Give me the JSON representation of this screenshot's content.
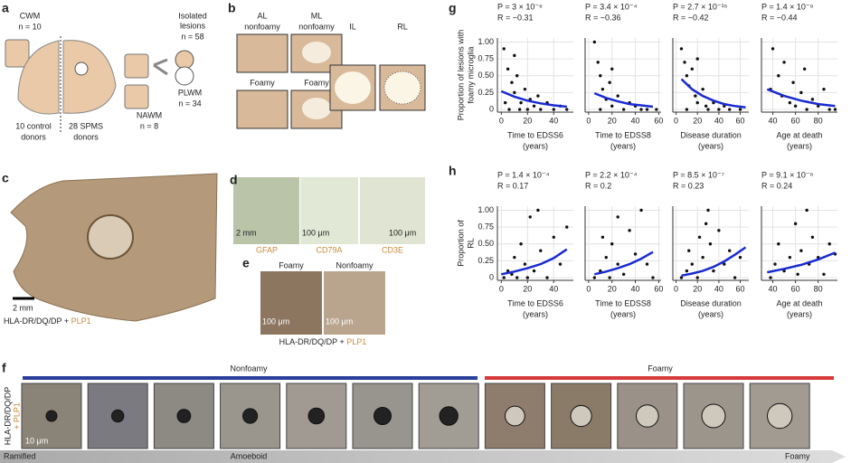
{
  "panel_labels": [
    "a",
    "b",
    "c",
    "d",
    "e",
    "f",
    "g",
    "h"
  ],
  "a": {
    "cwm": "CWM",
    "cwm_n": "n = 10",
    "isolated": [
      "Isolated",
      "lesions"
    ],
    "isolated_n": "n = 58",
    "plwm": "PLWM",
    "plwm_n": "n = 34",
    "nawm": "NAWM",
    "nawm_n": "n = 8",
    "control": [
      "10 control",
      "donors"
    ],
    "spms": [
      "28 SPMS",
      "donors"
    ]
  },
  "b": {
    "al": [
      "AL",
      "nonfoamy"
    ],
    "ml": [
      "ML",
      "nonfoamy"
    ],
    "il": "IL",
    "rl": "RL",
    "foamy_al": "Foamy",
    "foamy_ml": "Foamy"
  },
  "c": {
    "scale": "2 mm",
    "stain": "HLA-DR/DQ/DP + ",
    "plp1": "PLP1"
  },
  "d": {
    "gfap": "GFAP",
    "cd79a": "CD79A",
    "cd3e": "CD3E",
    "scale1": "2 mm",
    "scale2": "100 μm",
    "scale3": "100 μm"
  },
  "e": {
    "foamy": "Foamy",
    "nonfoamy": "Nonfoamy",
    "scale1": "100 μm",
    "scale2": "100 μm",
    "stain": "HLA-DR/DQ/DP + ",
    "plp1": "PLP1"
  },
  "f": {
    "nonfoamy": "Nonfoamy",
    "foamy": "Foamy",
    "ramified": "Ramified",
    "amoeboid": "Amoeboid",
    "foamy_end": "Foamy",
    "scale": "10 μm",
    "stain": "HLA-DR/DQ/DP",
    "plp1": "+ PLP1"
  },
  "chart_data": [
    {
      "type": "scatter",
      "ylabel": [
        "Proportion of lesions with",
        "foamy microglia"
      ],
      "stats": [
        "P = 3 × 10⁻⁶",
        "R = −0.31"
      ],
      "xlabel": [
        "Time to EDSS6",
        "(years)"
      ],
      "x": [
        2,
        5,
        8,
        10,
        12,
        15,
        18,
        20,
        22,
        25,
        28,
        30,
        35,
        40,
        45,
        3,
        6,
        10,
        14,
        50
      ],
      "y": [
        0.9,
        0.6,
        0.4,
        0.25,
        0.5,
        0.1,
        0.3,
        0,
        0.15,
        0.05,
        0.2,
        0,
        0.1,
        0,
        0.05,
        0.1,
        0,
        0.8,
        0,
        0
      ],
      "fit_x": [
        0,
        10,
        20,
        30,
        40,
        50
      ],
      "fit_y": [
        0.27,
        0.19,
        0.13,
        0.09,
        0.06,
        0.04
      ],
      "color": "#111111",
      "fit_color": "#1a2bd0",
      "grid": true,
      "xlim": [
        -3,
        55
      ],
      "xticks": [
        0,
        20,
        40
      ],
      "ylim": [
        -0.04,
        1.06
      ],
      "yticks": [
        0,
        0.25,
        {
          "value": 0.5,
          "label": "0.50"
        },
        0.75,
        {
          "value": 1,
          "label": "1.00"
        }
      ]
    },
    {
      "type": "scatter",
      "stats": [
        "P = 3.4 × 10⁻⁴",
        "R = −0.36"
      ],
      "xlabel": [
        "Time to EDSS8",
        "(years)"
      ],
      "x": [
        5,
        8,
        10,
        12,
        15,
        18,
        20,
        25,
        30,
        35,
        40,
        45,
        50,
        58,
        10,
        20
      ],
      "y": [
        1,
        0.7,
        0.5,
        0.3,
        0.15,
        0.4,
        0.05,
        0.2,
        0,
        0.1,
        0.05,
        0,
        0,
        0,
        0,
        0.6
      ],
      "fit_x": [
        5,
        15,
        25,
        35,
        45,
        55
      ],
      "fit_y": [
        0.24,
        0.17,
        0.12,
        0.08,
        0.06,
        0.04
      ],
      "color": "#111111",
      "fit_color": "#1a2bd0",
      "grid": true,
      "xlim": [
        -3,
        62
      ],
      "xticks": [
        0,
        20,
        40,
        60
      ],
      "ylim": [
        -0.04,
        1.06
      ],
      "yticks": [
        0,
        0.25,
        0.5,
        0.75,
        1
      ]
    },
    {
      "type": "scatter",
      "stats": [
        "P = 2.7 × 10⁻¹⁵",
        "R = −0.42"
      ],
      "xlabel": [
        "Disease duration",
        "(years)"
      ],
      "x": [
        5,
        8,
        10,
        12,
        15,
        18,
        20,
        25,
        28,
        30,
        35,
        40,
        45,
        50,
        60,
        10,
        20
      ],
      "y": [
        0.9,
        0.7,
        0.5,
        0.35,
        0.6,
        0.2,
        0.1,
        0.3,
        0.05,
        0,
        0.1,
        0,
        0.05,
        0,
        0,
        0,
        0.75
      ],
      "fit_x": [
        5,
        15,
        25,
        35,
        45,
        55,
        65
      ],
      "fit_y": [
        0.45,
        0.3,
        0.2,
        0.13,
        0.08,
        0.05,
        0.03
      ],
      "color": "#111111",
      "fit_color": "#1a2bd0",
      "grid": true,
      "xlim": [
        -3,
        68
      ],
      "xticks": [
        0,
        20,
        40,
        60
      ],
      "ylim": [
        -0.04,
        1.06
      ],
      "yticks": [
        0,
        0.25,
        0.5,
        0.75,
        1
      ]
    },
    {
      "type": "scatter",
      "stats": [
        "P = 1.4 × 10⁻⁸",
        "R = −0.44"
      ],
      "xlabel": [
        "Age at death",
        "(years)"
      ],
      "x": [
        38,
        40,
        45,
        48,
        50,
        55,
        58,
        60,
        65,
        68,
        70,
        75,
        80,
        85,
        90,
        95
      ],
      "y": [
        0.3,
        0.9,
        0.5,
        0.2,
        0.7,
        0.1,
        0.4,
        0.05,
        0.25,
        0.6,
        0,
        0.15,
        0.05,
        0.3,
        0,
        0
      ],
      "fit_x": [
        35,
        50,
        65,
        80,
        95
      ],
      "fit_y": [
        0.3,
        0.2,
        0.13,
        0.08,
        0.05
      ],
      "color": "#111111",
      "fit_color": "#1a2bd0",
      "grid": true,
      "xlim": [
        30,
        97
      ],
      "xticks": [
        40,
        60,
        80
      ],
      "ylim": [
        -0.04,
        1.06
      ],
      "yticks": [
        0,
        0.25,
        0.5,
        0.75,
        1
      ]
    },
    {
      "type": "scatter",
      "ylabel": [
        "Proportion of",
        "RL"
      ],
      "stats": [
        "P = 1.4 × 10⁻⁴",
        "R = 0.17"
      ],
      "xlabel": [
        "Time to EDSS6",
        "(years)"
      ],
      "x": [
        2,
        5,
        8,
        10,
        12,
        15,
        18,
        20,
        22,
        25,
        30,
        35,
        40,
        45,
        50,
        28
      ],
      "y": [
        0,
        0.1,
        0.05,
        0.3,
        0,
        0.5,
        0.2,
        0,
        0.9,
        0.1,
        0.4,
        0,
        0.6,
        0.2,
        0.75,
        1
      ],
      "fit_x": [
        0,
        10,
        20,
        30,
        40,
        50
      ],
      "fit_y": [
        0.05,
        0.09,
        0.14,
        0.2,
        0.29,
        0.42
      ],
      "color": "#111111",
      "fit_color": "#1a2bd0",
      "grid": true,
      "xlim": [
        -3,
        55
      ],
      "xticks": [
        0,
        20,
        40
      ],
      "ylim": [
        -0.04,
        1.06
      ],
      "yticks": [
        0,
        0.25,
        {
          "value": 0.5,
          "label": "0.50"
        },
        0.75,
        {
          "value": 1,
          "label": "1.00"
        }
      ]
    },
    {
      "type": "scatter",
      "stats": [
        "P = 2.2 × 10⁻⁴",
        "R = 0.2"
      ],
      "xlabel": [
        "Time to EDSS8",
        "(years)"
      ],
      "x": [
        5,
        10,
        15,
        18,
        20,
        25,
        30,
        35,
        40,
        45,
        50,
        55,
        25,
        12
      ],
      "y": [
        0,
        0.1,
        0.3,
        0,
        0.5,
        0.2,
        0.05,
        0.7,
        0.35,
        1,
        0.2,
        0,
        0.9,
        0.6
      ],
      "fit_x": [
        5,
        15,
        25,
        35,
        45,
        55
      ],
      "fit_y": [
        0.05,
        0.09,
        0.14,
        0.2,
        0.28,
        0.38
      ],
      "color": "#111111",
      "fit_color": "#1a2bd0",
      "grid": true,
      "xlim": [
        -3,
        62
      ],
      "xticks": [
        0,
        20,
        40,
        60
      ],
      "ylim": [
        -0.04,
        1.06
      ],
      "yticks": [
        0,
        0.25,
        0.5,
        0.75,
        1
      ]
    },
    {
      "type": "scatter",
      "stats": [
        "P = 8.5 × 10⁻⁷",
        "R = 0.23"
      ],
      "xlabel": [
        "Disease duration",
        "(years)"
      ],
      "x": [
        5,
        10,
        12,
        15,
        20,
        22,
        25,
        30,
        32,
        35,
        40,
        45,
        50,
        55,
        60,
        28
      ],
      "y": [
        0,
        0.1,
        0.4,
        0.2,
        0,
        0.6,
        0.3,
        1,
        0.5,
        0.1,
        0.7,
        0.2,
        0.4,
        0,
        0.3,
        0.8
      ],
      "fit_x": [
        5,
        15,
        25,
        35,
        45,
        55,
        65
      ],
      "fit_y": [
        0.03,
        0.06,
        0.1,
        0.16,
        0.24,
        0.34,
        0.45
      ],
      "color": "#111111",
      "fit_color": "#1a2bd0",
      "grid": true,
      "xlim": [
        -3,
        68
      ],
      "xticks": [
        0,
        20,
        40,
        60
      ],
      "ylim": [
        -0.04,
        1.06
      ],
      "yticks": [
        0,
        0.25,
        0.5,
        0.75,
        1
      ]
    },
    {
      "type": "scatter",
      "stats": [
        "P = 9.1 × 10⁻⁶",
        "R = 0.24"
      ],
      "xlabel": [
        "Age at death",
        "(years)"
      ],
      "x": [
        38,
        42,
        45,
        50,
        55,
        60,
        62,
        65,
        70,
        72,
        75,
        80,
        85,
        90,
        95
      ],
      "y": [
        0,
        0.2,
        0.5,
        0.1,
        0.3,
        0.8,
        0.05,
        0.4,
        1,
        0.2,
        0.6,
        0.3,
        0.05,
        0.5,
        0.35
      ],
      "fit_x": [
        35,
        50,
        65,
        80,
        95
      ],
      "fit_y": [
        0.08,
        0.13,
        0.19,
        0.27,
        0.37
      ],
      "color": "#111111",
      "fit_color": "#1a2bd0",
      "grid": true,
      "xlim": [
        30,
        97
      ],
      "xticks": [
        40,
        60,
        80
      ],
      "ylim": [
        -0.04,
        1.06
      ],
      "yticks": [
        0,
        0.25,
        0.5,
        0.75,
        1
      ]
    }
  ]
}
